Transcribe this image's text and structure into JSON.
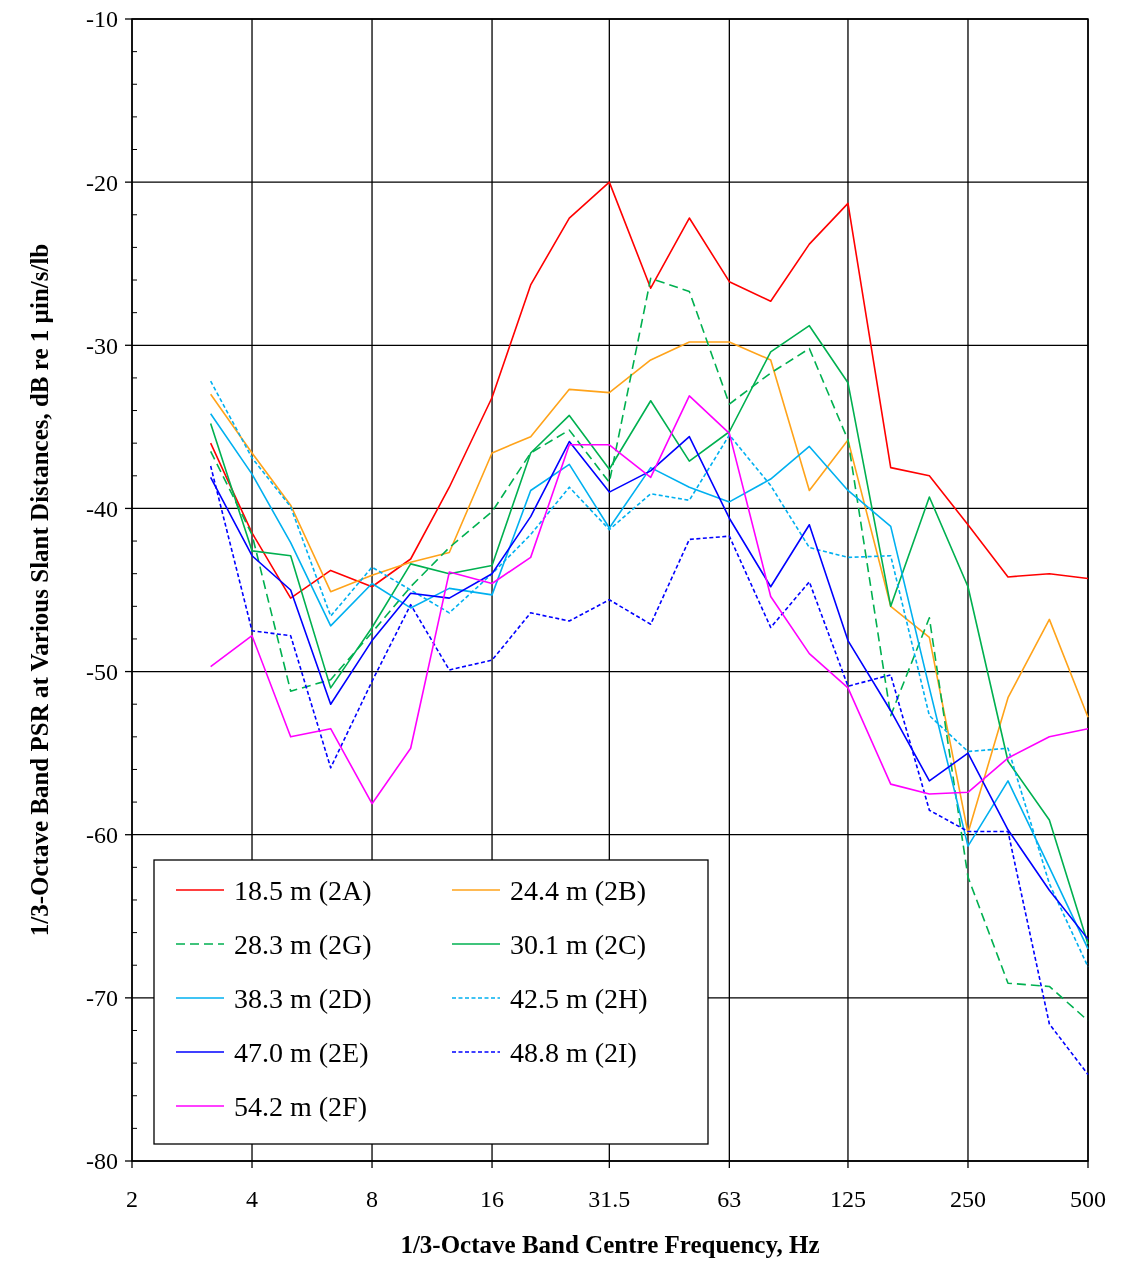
{
  "chart_data": {
    "type": "line",
    "xlabel": "1/3-Octave Band Centre Frequency, Hz",
    "ylabel": "1/3-Octave Band PSR at Various Slant Distances, dB re 1 µin/s/lb",
    "log": "x",
    "x": [
      3.15,
      4,
      5,
      6.3,
      8,
      10,
      12.5,
      16,
      20,
      25,
      31.5,
      40,
      50,
      63,
      80,
      100,
      125,
      160,
      200,
      250,
      315,
      400,
      500
    ],
    "xlim": [
      2,
      500
    ],
    "xticks": [
      2,
      4,
      8,
      16,
      31.5,
      63,
      125,
      250,
      500
    ],
    "ylim": [
      -80,
      -10
    ],
    "yticks": [
      -80,
      -70,
      -60,
      -50,
      -40,
      -30,
      -20,
      -10
    ],
    "grid": true,
    "legend": "bottom left",
    "marker": "none",
    "series": [
      {
        "name": "18.5 m (2A)",
        "color": "#ff0000",
        "line_style": "solid",
        "values": [
          -36.0,
          -41.5,
          -45.5,
          -43.8,
          -44.8,
          -43.1,
          -38.7,
          -33.2,
          -26.3,
          -22.2,
          -20.0,
          -26.5,
          -22.2,
          -26.1,
          -27.3,
          -23.8,
          -21.3,
          -37.5,
          -38.0,
          -41.0,
          -44.2,
          -44.0,
          -44.3
        ]
      },
      {
        "name": "24.4 m (2B)",
        "color": "#ffa31a",
        "line_style": "solid",
        "values": [
          -33.0,
          -36.6,
          -39.8,
          -45.1,
          -44.1,
          -43.3,
          -42.7,
          -36.6,
          -35.6,
          -32.7,
          -32.9,
          -30.9,
          -29.8,
          -29.8,
          -30.9,
          -38.9,
          -35.8,
          -46.0,
          -47.9,
          -59.9,
          -51.6,
          -46.8,
          -52.8
        ]
      },
      {
        "name": "28.3 m (2G)",
        "color": "#00b050",
        "line_style": "dashed",
        "values": [
          -36.5,
          -41.6,
          -51.2,
          -50.5,
          -47.6,
          -44.8,
          -42.4,
          -40.2,
          -36.6,
          -35.2,
          -38.4,
          -25.9,
          -26.7,
          -33.6,
          -31.7,
          -30.2,
          -35.8,
          -52.7,
          -46.7,
          -62.6,
          -69.1,
          -69.3,
          -71.4
        ]
      },
      {
        "name": "30.1 m (2C)",
        "color": "#00b050",
        "line_style": "solid",
        "values": [
          -34.8,
          -42.6,
          -42.9,
          -51.0,
          -47.3,
          -43.4,
          -44.0,
          -43.5,
          -36.6,
          -34.3,
          -37.6,
          -33.4,
          -37.1,
          -35.3,
          -30.4,
          -28.8,
          -32.3,
          -46.0,
          -39.3,
          -44.8,
          -55.5,
          -59.1,
          -66.7
        ]
      },
      {
        "name": "38.3 m (2D)",
        "color": "#00b0f0",
        "line_style": "solid",
        "values": [
          -34.2,
          -37.9,
          -42.1,
          -47.2,
          -44.6,
          -46.1,
          -44.9,
          -45.3,
          -38.9,
          -37.3,
          -41.2,
          -37.5,
          -38.7,
          -39.6,
          -38.2,
          -36.2,
          -38.9,
          -41.1,
          -51.0,
          -60.7,
          -56.7,
          -62.0,
          -67.0
        ]
      },
      {
        "name": "42.5 m (2H)",
        "color": "#00b0f0",
        "line_style": "dotted",
        "values": [
          -32.2,
          -36.9,
          -39.9,
          -46.6,
          -43.6,
          -45.0,
          -46.4,
          -44.0,
          -41.6,
          -38.7,
          -41.3,
          -39.1,
          -39.5,
          -35.5,
          -38.6,
          -42.4,
          -43.0,
          -42.9,
          -52.7,
          -54.9,
          -54.7,
          -63.0,
          -68.1
        ]
      },
      {
        "name": "47.0 m (2E)",
        "color": "#0000ff",
        "line_style": "solid",
        "values": [
          -38.1,
          -42.9,
          -45.0,
          -52.0,
          -48.1,
          -45.2,
          -45.5,
          -44.0,
          -40.5,
          -35.9,
          -39.0,
          -37.7,
          -35.6,
          -40.6,
          -44.8,
          -41.0,
          -48.1,
          -52.4,
          -56.7,
          -55.0,
          -59.7,
          -63.4,
          -66.4
        ]
      },
      {
        "name": "48.8 m (2I)",
        "color": "#0000ff",
        "line_style": "dotted",
        "values": [
          -37.4,
          -47.5,
          -47.8,
          -55.9,
          -50.6,
          -45.9,
          -49.9,
          -49.3,
          -46.4,
          -46.9,
          -45.6,
          -47.1,
          -41.9,
          -41.7,
          -47.3,
          -44.5,
          -50.9,
          -50.2,
          -58.5,
          -59.8,
          -59.8,
          -71.6,
          -74.7
        ]
      },
      {
        "name": "54.2 m (2F)",
        "color": "#ff00ff",
        "line_style": "solid",
        "values": [
          -49.7,
          -47.8,
          -54.0,
          -53.5,
          -58.1,
          -54.7,
          -43.9,
          -44.6,
          -43.0,
          -36.1,
          -36.1,
          -38.1,
          -33.1,
          -35.4,
          -45.4,
          -48.9,
          -51.0,
          -56.9,
          -57.5,
          -57.4,
          -55.3,
          -54.0,
          -53.5
        ]
      }
    ]
  }
}
